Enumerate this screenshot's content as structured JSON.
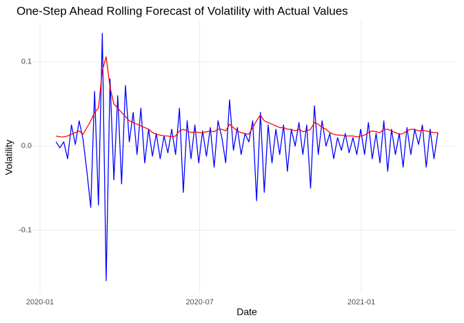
{
  "chart_data": {
    "type": "line",
    "title": "One-Step Ahead Rolling Forecast of Volatility with Actual Values",
    "x_label": "Date",
    "y_label": "Volatility",
    "x": [
      2020.05,
      2020.062,
      2020.074,
      2020.086,
      2020.098,
      2020.11,
      2020.122,
      2020.134,
      2020.146,
      2020.158,
      2020.17,
      2020.182,
      2020.194,
      2020.206,
      2020.218,
      2020.23,
      2020.242,
      2020.254,
      2020.266,
      2020.278,
      2020.29,
      2020.302,
      2020.314,
      2020.326,
      2020.338,
      2020.35,
      2020.362,
      2020.374,
      2020.386,
      2020.398,
      2020.41,
      2020.422,
      2020.434,
      2020.446,
      2020.458,
      2020.47,
      2020.482,
      2020.494,
      2020.506,
      2020.518,
      2020.53,
      2020.542,
      2020.554,
      2020.566,
      2020.578,
      2020.59,
      2020.602,
      2020.614,
      2020.626,
      2020.638,
      2020.65,
      2020.662,
      2020.674,
      2020.686,
      2020.698,
      2020.71,
      2020.722,
      2020.734,
      2020.746,
      2020.758,
      2020.77,
      2020.782,
      2020.794,
      2020.806,
      2020.818,
      2020.83,
      2020.842,
      2020.854,
      2020.866,
      2020.878,
      2020.89,
      2020.902,
      2020.914,
      2020.926,
      2020.938,
      2020.95,
      2020.962,
      2020.974,
      2020.986,
      2020.998,
      2021.01,
      2021.022,
      2021.034,
      2021.046,
      2021.058,
      2021.07,
      2021.082,
      2021.094,
      2021.106,
      2021.118,
      2021.13,
      2021.142,
      2021.154,
      2021.166,
      2021.178,
      2021.19,
      2021.202,
      2021.214,
      2021.226,
      2021.238
    ],
    "series": [
      {
        "color": "#0000ff",
        "values": [
          0.005,
          -0.002,
          0.005,
          -0.015,
          0.025,
          0.002,
          0.03,
          0.008,
          -0.03,
          -0.073,
          0.065,
          -0.07,
          0.134,
          -0.16,
          0.08,
          -0.04,
          0.06,
          -0.045,
          0.072,
          0.005,
          0.04,
          -0.01,
          0.045,
          -0.02,
          0.02,
          -0.012,
          0.015,
          -0.015,
          0.012,
          -0.008,
          0.02,
          -0.01,
          0.045,
          -0.055,
          0.03,
          -0.015,
          0.025,
          -0.02,
          0.018,
          -0.012,
          0.022,
          -0.025,
          0.03,
          0.01,
          -0.02,
          0.055,
          -0.005,
          0.022,
          -0.01,
          0.015,
          0.005,
          0.03,
          -0.065,
          0.04,
          -0.055,
          0.025,
          -0.02,
          0.02,
          -0.01,
          0.025,
          -0.03,
          0.02,
          0.0,
          0.028,
          -0.01,
          0.025,
          -0.05,
          0.048,
          -0.01,
          0.03,
          0.0,
          0.015,
          -0.015,
          0.01,
          -0.005,
          0.015,
          -0.008,
          0.01,
          -0.01,
          0.02,
          -0.01,
          0.028,
          -0.015,
          0.015,
          -0.02,
          0.03,
          -0.03,
          0.02,
          -0.01,
          0.015,
          -0.025,
          0.022,
          -0.01,
          0.02,
          0.002,
          0.025,
          -0.025,
          0.02,
          -0.015,
          0.016
        ]
      },
      {
        "color": "#ff0000",
        "values": [
          0.012,
          0.011,
          0.011,
          0.012,
          0.014,
          0.016,
          0.018,
          0.014,
          0.022,
          0.03,
          0.04,
          0.045,
          0.09,
          0.106,
          0.07,
          0.05,
          0.045,
          0.04,
          0.035,
          0.03,
          0.028,
          0.026,
          0.024,
          0.022,
          0.02,
          0.016,
          0.014,
          0.013,
          0.012,
          0.012,
          0.011,
          0.012,
          0.018,
          0.02,
          0.018,
          0.016,
          0.017,
          0.016,
          0.016,
          0.017,
          0.018,
          0.017,
          0.02,
          0.02,
          0.018,
          0.026,
          0.022,
          0.018,
          0.016,
          0.015,
          0.014,
          0.022,
          0.03,
          0.037,
          0.03,
          0.028,
          0.026,
          0.024,
          0.022,
          0.022,
          0.02,
          0.02,
          0.018,
          0.02,
          0.017,
          0.018,
          0.02,
          0.028,
          0.026,
          0.022,
          0.02,
          0.016,
          0.014,
          0.013,
          0.013,
          0.012,
          0.012,
          0.012,
          0.011,
          0.012,
          0.013,
          0.016,
          0.018,
          0.017,
          0.016,
          0.02,
          0.02,
          0.018,
          0.016,
          0.014,
          0.015,
          0.018,
          0.02,
          0.02,
          0.018,
          0.019,
          0.018,
          0.017,
          0.016,
          0.016
        ]
      }
    ],
    "xlim": [
      2019.94,
      2021.298
    ],
    "xticks": [
      {
        "value": 2020.0,
        "label": "2020-01"
      },
      {
        "value": 2020.497,
        "label": "2020-07"
      },
      {
        "value": 2021.0,
        "label": "2021-01"
      }
    ],
    "ylim": [
      -0.175,
      0.149
    ],
    "yticks": [
      -0.1,
      {
        "value": 0,
        "label": "0.0"
      },
      0.1
    ],
    "grid": true
  }
}
